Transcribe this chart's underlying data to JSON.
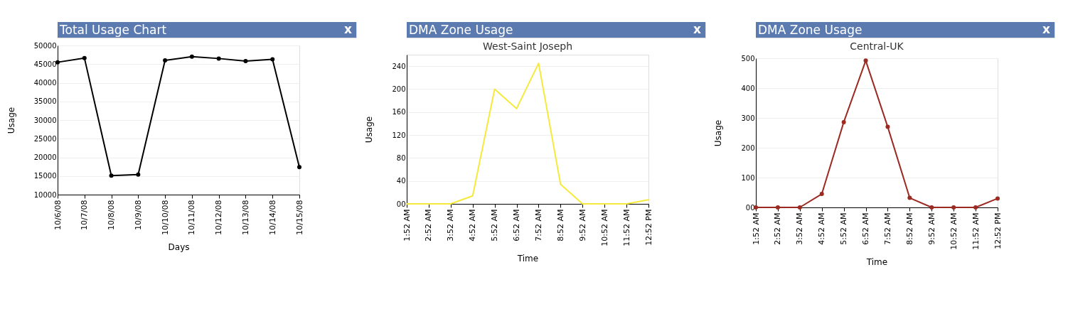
{
  "chart_data": [
    {
      "type": "line",
      "title": "Total Usage Chart",
      "xlabel": "Days",
      "ylabel": "Usage",
      "annotations": [
        "x"
      ],
      "categories": [
        "10/6/08",
        "10/7/08",
        "10/8/08",
        "10/9/08",
        "10/10/08",
        "10/11/08",
        "10/12/08",
        "10/13/08",
        "10/14/08",
        "10/15/08"
      ],
      "series": [
        {
          "color": "#000000",
          "values": [
            45500,
            46600,
            15100,
            15400,
            46000,
            47000,
            46500,
            45800,
            46300,
            17400
          ]
        }
      ],
      "ylim": [
        10000,
        50000
      ],
      "yticks": [
        10000,
        15000,
        20000,
        25000,
        30000,
        35000,
        40000,
        45000,
        50000
      ],
      "grid": "y",
      "marker": "circle"
    },
    {
      "type": "line",
      "title": "DMA Zone Usage",
      "subtitle": "West-Saint Joseph",
      "xlabel": "Time",
      "ylabel": "Usage",
      "annotations": [
        "x"
      ],
      "categories": [
        "1:52 AM",
        "2:52 AM",
        "3:52 AM",
        "4:52 AM",
        "5:52 AM",
        "6:52 AM",
        "7:52 AM",
        "8:52 AM",
        "9:52 AM",
        "10:52 AM",
        "11:52 AM",
        "12:52 PM"
      ],
      "series": [
        {
          "color": "#f5ea3c",
          "values": [
            0,
            0,
            0,
            14,
            200,
            166,
            245,
            34,
            0,
            0,
            0,
            7
          ]
        }
      ],
      "ylim": [
        0,
        260
      ],
      "yticks": [
        {
          "value": 0,
          "label": "00"
        },
        40,
        80,
        120,
        160,
        200,
        240
      ],
      "grid": "y"
    },
    {
      "type": "line",
      "title": "DMA Zone Usage",
      "subtitle": "Central-UK",
      "xlabel": "Time",
      "ylabel": "Usage",
      "annotations": [
        "x"
      ],
      "categories": [
        "1:52 AM",
        "2:52 AM",
        "3:52 AM",
        "4:52 AM",
        "5:52 AM",
        "6:52 AM",
        "7:52 AM",
        "8:52 AM",
        "9:52 AM",
        "10:52 AM",
        "11:52 AM",
        "12:52 PM"
      ],
      "series": [
        {
          "color": "#9b2a22",
          "values": [
            0,
            0,
            0,
            45,
            286,
            492,
            270,
            32,
            0,
            0,
            0,
            30
          ]
        }
      ],
      "ylim": [
        0,
        500
      ],
      "yticks": [
        {
          "value": 0,
          "label": "00"
        },
        100,
        200,
        300,
        400,
        500
      ],
      "grid": "y",
      "marker": "circle"
    }
  ]
}
